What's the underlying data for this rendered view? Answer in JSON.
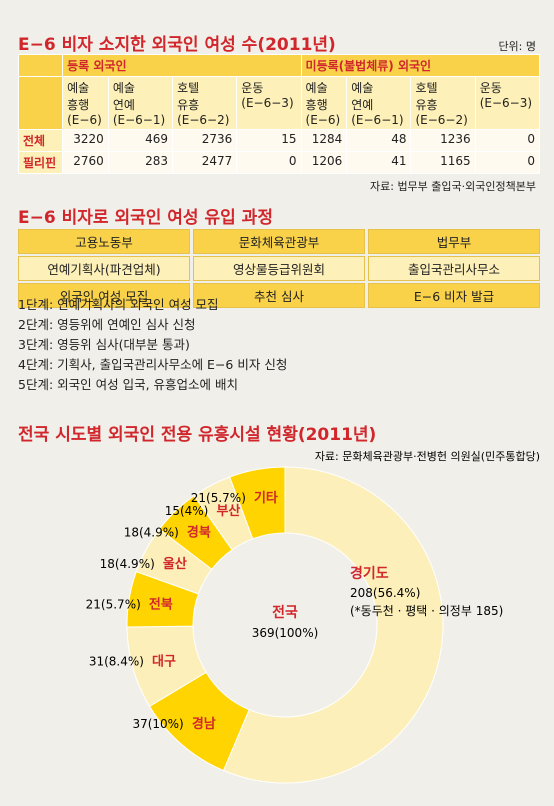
{
  "title1": "E−6 비자 소지한 외국인 여성 수(2011년)",
  "unit": "단위: 명",
  "table": {
    "groups": [
      "등록 외국인",
      "미등록(불법체류) 외국인"
    ],
    "columns": [
      "예술\n흥행\n(E−6)",
      "예술\n연예\n(E−6−1)",
      "호텔\n유흥\n(E−6−2)",
      "운동\n(E−6−3)",
      "예술\n흥행\n(E−6)",
      "예술\n연예\n(E−6−1)",
      "호텔\n유흥\n(E−6−2)",
      "운동\n(E−6−3)"
    ],
    "rows": [
      {
        "label": "전체",
        "values": [
          3220,
          469,
          2736,
          15,
          1284,
          48,
          1236,
          0
        ]
      },
      {
        "label": "필리핀",
        "values": [
          2760,
          283,
          2477,
          0,
          1206,
          41,
          1165,
          0
        ]
      }
    ]
  },
  "source1": "자료: 법무부 출입국·외국인정책본부",
  "title2": "E−6 비자로 외국인 여성 유입 과정",
  "process": {
    "rows": [
      [
        "고용노동부",
        "문화체육관광부",
        "법무부"
      ],
      [
        "연예기획사(파견업체)",
        "영상물등급위원회",
        "출입국관리사무소"
      ],
      [
        "외국인 여성 모집",
        "추천 심사",
        "E−6 비자 발급"
      ]
    ]
  },
  "steps": [
    "1단계: 연예기획사의 외국인 여성 모집",
    "2단계: 영등위에 연예인 심사 신청",
    "3단계: 영등위 심사(대부분 통과)",
    "4단계: 기획사, 출입국관리사무소에 E−6 비자 신청",
    "5단계: 외국인 여성 입국, 유흥업소에 배치"
  ],
  "chart_data": {
    "type": "donut",
    "title": "전국 시도별 외국인 전용 유흥시설 현황(2011년)",
    "source": "자료: 문화체육관광부·전병헌 의원실(민주통합당)",
    "center_label": "전국",
    "center_value_label": "369(100%)",
    "categories": [
      "경기도",
      "경남",
      "대구",
      "전북",
      "울산",
      "경북",
      "부산",
      "기타"
    ],
    "values": [
      208,
      37,
      31,
      21,
      18,
      18,
      15,
      21
    ],
    "value_labels": [
      "208(56.4%)",
      "37(10%)",
      "31(8.4%)",
      "21(5.7%)",
      "18(4.9%)",
      "18(4.9%)",
      "15(4%)",
      "21(5.7%)"
    ],
    "colors": [
      "#fcefb9",
      "#ffd400",
      "#fcefb9",
      "#ffd400",
      "#fcefb9",
      "#ffd400",
      "#fcefb9",
      "#ffd400"
    ],
    "note": "(*동두천 · 평택 · 의정부 185)"
  }
}
